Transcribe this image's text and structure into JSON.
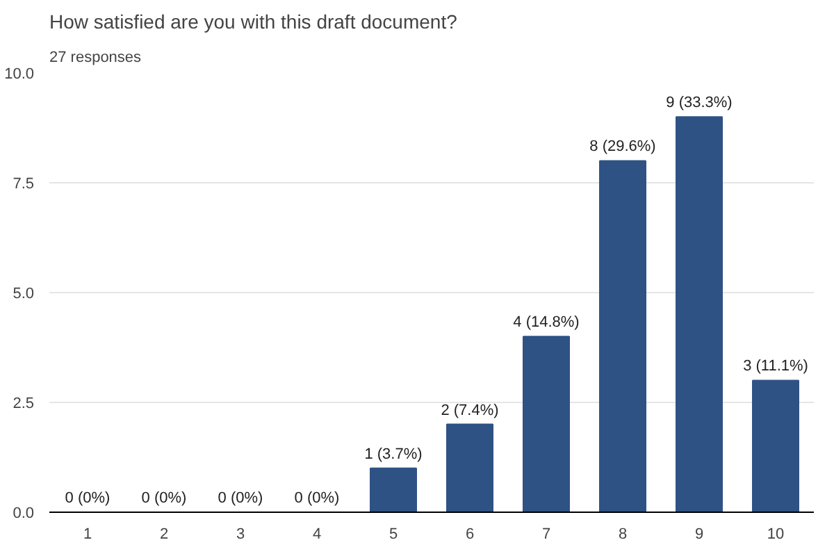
{
  "chart_data": {
    "type": "bar",
    "title": "How satisfied are you with this draft document?",
    "subtitle": "27 responses",
    "categories": [
      "1",
      "2",
      "3",
      "4",
      "5",
      "6",
      "7",
      "8",
      "9",
      "10"
    ],
    "values": [
      0,
      0,
      0,
      0,
      1,
      2,
      4,
      8,
      9,
      3
    ],
    "value_labels": [
      "0 (0%)",
      "0 (0%)",
      "0 (0%)",
      "0 (0%)",
      "1 (3.7%)",
      "2 (7.4%)",
      "4 (14.8%)",
      "8 (29.6%)",
      "9 (33.3%)",
      "3 (11.1%)"
    ],
    "color": "#2f5285",
    "ylim": [
      0,
      10
    ],
    "yticks": [
      {
        "value": 0,
        "label": "0.0"
      },
      {
        "value": 2.5,
        "label": "2.5"
      },
      {
        "value": 5,
        "label": "5.0"
      },
      {
        "value": 7.5,
        "label": "7.5"
      },
      {
        "value": 10,
        "label": "10.0"
      }
    ],
    "grid": "y"
  }
}
